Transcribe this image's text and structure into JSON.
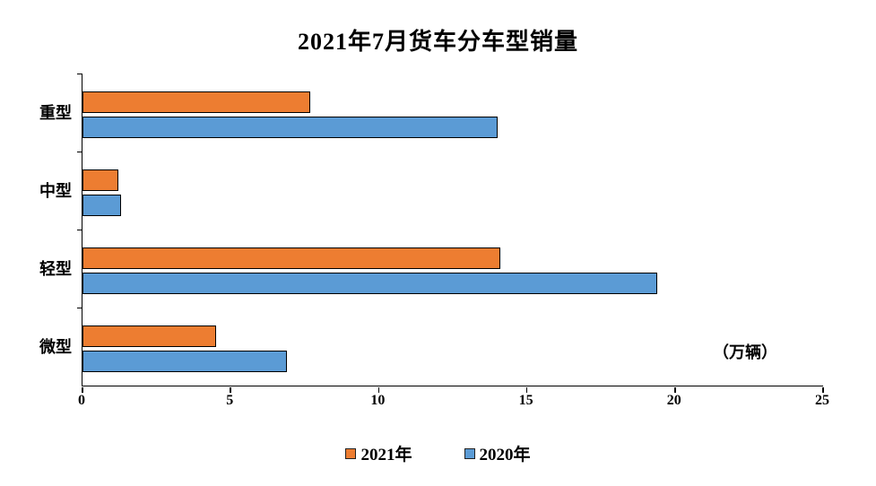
{
  "chart": {
    "title": "2021年7月货车分车型销量",
    "unit_label": "（万辆）"
  },
  "chart_data": {
    "type": "bar",
    "orientation": "horizontal",
    "title": "2021年7月货车分车型销量",
    "categories": [
      "重型",
      "中型",
      "轻型",
      "微型"
    ],
    "series": [
      {
        "name": "2021年",
        "color": "#ED7D31",
        "values": [
          7.7,
          1.2,
          14.1,
          4.5
        ]
      },
      {
        "name": "2020年",
        "color": "#5B9BD5",
        "values": [
          14.0,
          1.3,
          19.4,
          6.9
        ]
      }
    ],
    "xlim": [
      0,
      25
    ],
    "xticks": [
      0,
      5,
      10,
      15,
      20,
      25
    ],
    "x_unit": "（万辆）",
    "bar_border_color": "#000000",
    "axis_color": "#000000",
    "grid": false,
    "legend_position": "bottom"
  }
}
